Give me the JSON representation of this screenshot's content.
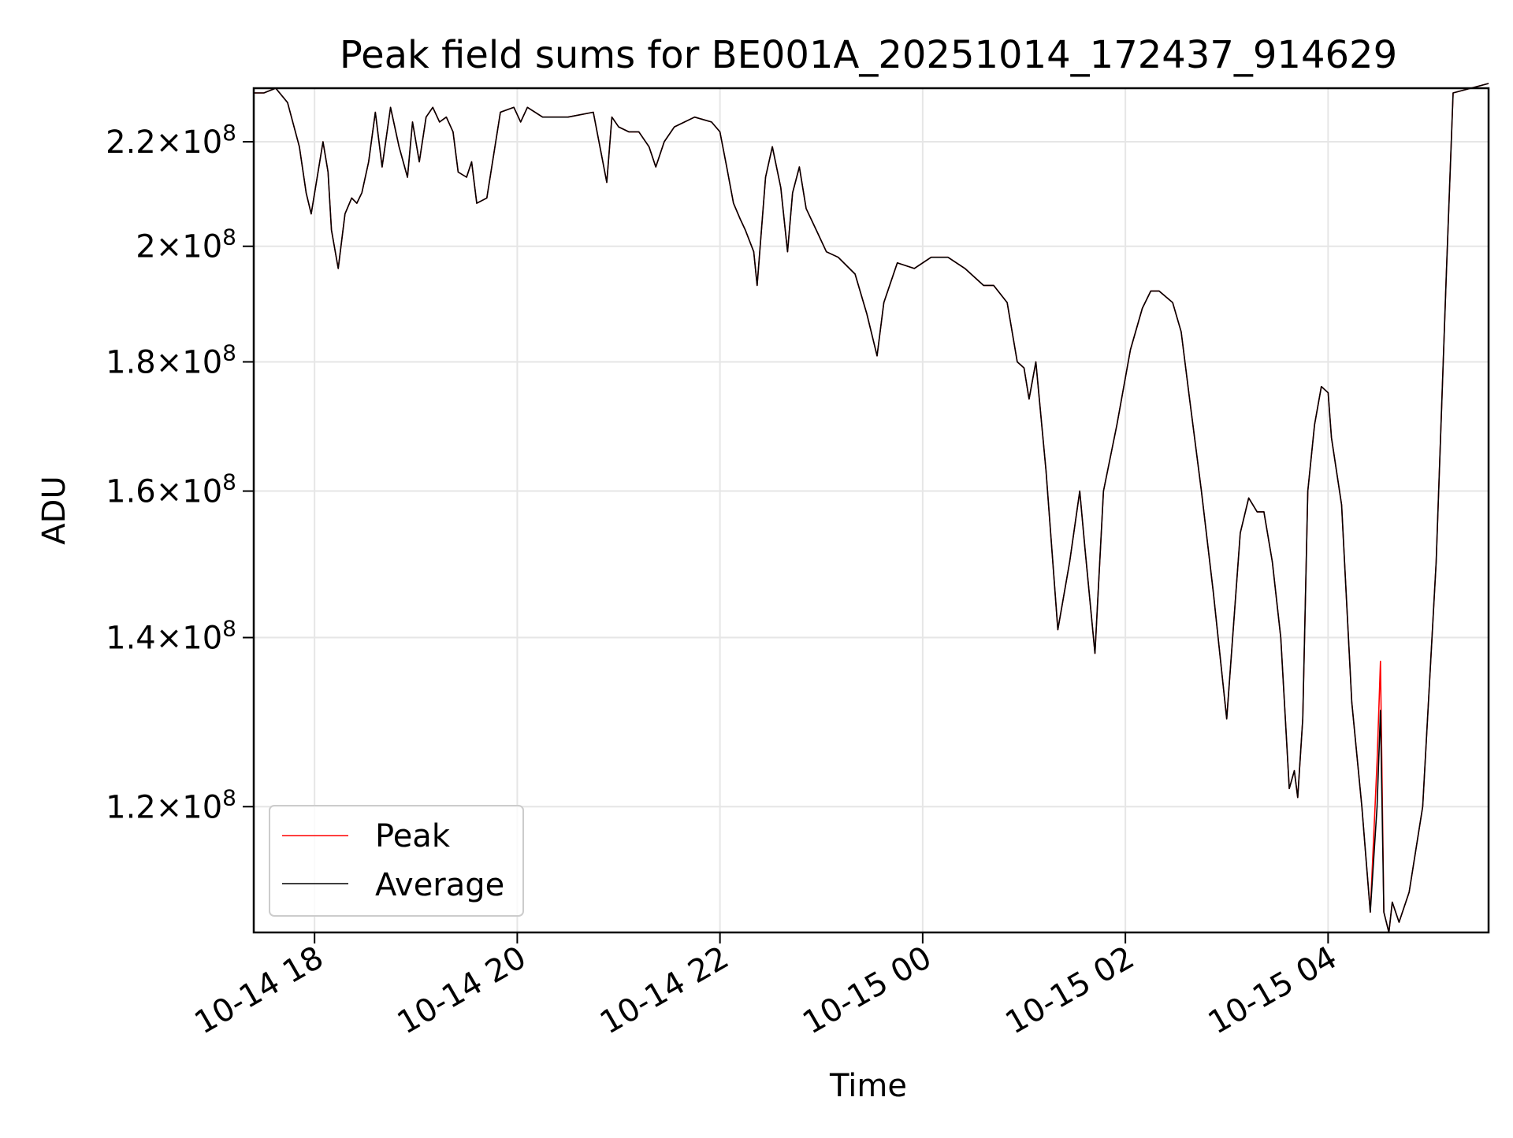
{
  "chart_data": {
    "type": "line",
    "title": "Peak field sums for BE001A_20251014_172437_914629",
    "xlabel": "Time",
    "ylabel": "ADU",
    "yscale": "log",
    "grid": true,
    "legend_position": "lower-left",
    "xlim": [
      "2025-10-14 17:24",
      "2025-10-15 05:35"
    ],
    "ylim": [
      107000000,
      231000000
    ],
    "x_ticks": [
      {
        "t": "2025-10-14 18:00",
        "label": "10-14 18"
      },
      {
        "t": "2025-10-14 20:00",
        "label": "10-14 20"
      },
      {
        "t": "2025-10-14 22:00",
        "label": "10-14 22"
      },
      {
        "t": "2025-10-15 00:00",
        "label": "10-15 00"
      },
      {
        "t": "2025-10-15 02:00",
        "label": "10-15 02"
      },
      {
        "t": "2025-10-15 04:00",
        "label": "10-15 04"
      }
    ],
    "y_ticks": [
      {
        "value": 120000000,
        "mantissa": "1.2",
        "base": "10",
        "exponent": "8"
      },
      {
        "value": 140000000,
        "mantissa": "1.4",
        "base": "10",
        "exponent": "8"
      },
      {
        "value": 160000000,
        "mantissa": "1.6",
        "base": "10",
        "exponent": "8"
      },
      {
        "value": 180000000,
        "mantissa": "1.8",
        "base": "10",
        "exponent": "8"
      },
      {
        "value": 200000000,
        "mantissa": "2",
        "base": "10",
        "exponent": "8"
      },
      {
        "value": 220000000,
        "mantissa": "2.2",
        "base": "10",
        "exponent": "8"
      }
    ],
    "series": [
      {
        "name": "Peak",
        "color": "#ff0000",
        "x": [
          "2025-10-14 17:24",
          "2025-10-14 17:30",
          "2025-10-14 17:37",
          "2025-10-14 17:44",
          "2025-10-14 17:51",
          "2025-10-14 17:55",
          "2025-10-14 17:58",
          "2025-10-14 18:05",
          "2025-10-14 18:08",
          "2025-10-14 18:10",
          "2025-10-14 18:14",
          "2025-10-14 18:18",
          "2025-10-14 18:22",
          "2025-10-14 18:25",
          "2025-10-14 18:28",
          "2025-10-14 18:32",
          "2025-10-14 18:36",
          "2025-10-14 18:40",
          "2025-10-14 18:45",
          "2025-10-14 18:50",
          "2025-10-14 18:55",
          "2025-10-14 18:58",
          "2025-10-14 19:02",
          "2025-10-14 19:06",
          "2025-10-14 19:10",
          "2025-10-14 19:14",
          "2025-10-14 19:18",
          "2025-10-14 19:22",
          "2025-10-14 19:25",
          "2025-10-14 19:30",
          "2025-10-14 19:33",
          "2025-10-14 19:36",
          "2025-10-14 19:42",
          "2025-10-14 19:50",
          "2025-10-14 19:58",
          "2025-10-14 20:02",
          "2025-10-14 20:06",
          "2025-10-14 20:15",
          "2025-10-14 20:30",
          "2025-10-14 20:45",
          "2025-10-14 20:53",
          "2025-10-14 20:56",
          "2025-10-14 21:00",
          "2025-10-14 21:06",
          "2025-10-14 21:12",
          "2025-10-14 21:18",
          "2025-10-14 21:22",
          "2025-10-14 21:27",
          "2025-10-14 21:33",
          "2025-10-14 21:45",
          "2025-10-14 21:55",
          "2025-10-14 22:00",
          "2025-10-14 22:04",
          "2025-10-14 22:08",
          "2025-10-14 22:12",
          "2025-10-14 22:15",
          "2025-10-14 22:20",
          "2025-10-14 22:22",
          "2025-10-14 22:27",
          "2025-10-14 22:31",
          "2025-10-14 22:36",
          "2025-10-14 22:40",
          "2025-10-14 22:43",
          "2025-10-14 22:47",
          "2025-10-14 22:51",
          "2025-10-14 22:57",
          "2025-10-14 23:03",
          "2025-10-14 23:10",
          "2025-10-14 23:20",
          "2025-10-14 23:27",
          "2025-10-14 23:33",
          "2025-10-14 23:37",
          "2025-10-14 23:45",
          "2025-10-14 23:55",
          "2025-10-15 00:05",
          "2025-10-15 00:15",
          "2025-10-15 00:25",
          "2025-10-15 00:36",
          "2025-10-15 00:42",
          "2025-10-15 00:50",
          "2025-10-15 00:56",
          "2025-10-15 01:00",
          "2025-10-15 01:03",
          "2025-10-15 01:07",
          "2025-10-15 01:13",
          "2025-10-15 01:20",
          "2025-10-15 01:27",
          "2025-10-15 01:33",
          "2025-10-15 01:36",
          "2025-10-15 01:42",
          "2025-10-15 01:47",
          "2025-10-15 01:55",
          "2025-10-15 02:03",
          "2025-10-15 02:10",
          "2025-10-15 02:15",
          "2025-10-15 02:20",
          "2025-10-15 02:28",
          "2025-10-15 02:33",
          "2025-10-15 02:38",
          "2025-10-15 02:45",
          "2025-10-15 02:52",
          "2025-10-15 03:00",
          "2025-10-15 03:08",
          "2025-10-15 03:13",
          "2025-10-15 03:18",
          "2025-10-15 03:22",
          "2025-10-15 03:27",
          "2025-10-15 03:32",
          "2025-10-15 03:37",
          "2025-10-15 03:40",
          "2025-10-15 03:42",
          "2025-10-15 03:45",
          "2025-10-15 03:48",
          "2025-10-15 03:52",
          "2025-10-15 03:56",
          "2025-10-15 04:00",
          "2025-10-15 04:02",
          "2025-10-15 04:08",
          "2025-10-15 04:14",
          "2025-10-15 04:20",
          "2025-10-15 04:25",
          "2025-10-15 04:29",
          "2025-10-15 04:31",
          "2025-10-15 04:33",
          "2025-10-15 04:36",
          "2025-10-15 04:38",
          "2025-10-15 04:42",
          "2025-10-15 04:48",
          "2025-10-15 04:56",
          "2025-10-15 05:04",
          "2025-10-15 05:10",
          "2025-10-15 05:14",
          "2025-10-15 05:35"
        ],
        "values": [
          230000000,
          230000000,
          231000000,
          228000000,
          219000000,
          210000000,
          206000000,
          220000000,
          214000000,
          203000000,
          196000000,
          206000000,
          209000000,
          208000000,
          210000000,
          216000000,
          226000000,
          215000000,
          227000000,
          219000000,
          213000000,
          224000000,
          216000000,
          225000000,
          227000000,
          224000000,
          225000000,
          222000000,
          214000000,
          213000000,
          216000000,
          208000000,
          209000000,
          226000000,
          227000000,
          224000000,
          227000000,
          225000000,
          225000000,
          226000000,
          212000000,
          225000000,
          223000000,
          222000000,
          222000000,
          219000000,
          215000000,
          220000000,
          223000000,
          225000000,
          224000000,
          222000000,
          215000000,
          208000000,
          205000000,
          203000000,
          199000000,
          193000000,
          213000000,
          219000000,
          211000000,
          199000000,
          210000000,
          215000000,
          207000000,
          203000000,
          199000000,
          198000000,
          195000000,
          188000000,
          181000000,
          190000000,
          197000000,
          196000000,
          198000000,
          198000000,
          196000000,
          193000000,
          193000000,
          190000000,
          180000000,
          179000000,
          174000000,
          180000000,
          163000000,
          141000000,
          150000000,
          160000000,
          152000000,
          138000000,
          160000000,
          170000000,
          182000000,
          189000000,
          192000000,
          192000000,
          190000000,
          185000000,
          174000000,
          160000000,
          146000000,
          130000000,
          154000000,
          159000000,
          157000000,
          157000000,
          150000000,
          140000000,
          122000000,
          124000000,
          121000000,
          130000000,
          160000000,
          170000000,
          176000000,
          175000000,
          168000000,
          158000000,
          132000000,
          120000000,
          109000000,
          125000000,
          137000000,
          109000000,
          107000000,
          110000000,
          108000000,
          111000000,
          120000000,
          150000000,
          195000000,
          230000000,
          232000000
        ]
      },
      {
        "name": "Average",
        "color": "#000000",
        "x": [
          "2025-10-14 17:24",
          "2025-10-14 17:30",
          "2025-10-14 17:37",
          "2025-10-14 17:44",
          "2025-10-14 17:51",
          "2025-10-14 17:55",
          "2025-10-14 17:58",
          "2025-10-14 18:05",
          "2025-10-14 18:08",
          "2025-10-14 18:10",
          "2025-10-14 18:14",
          "2025-10-14 18:18",
          "2025-10-14 18:22",
          "2025-10-14 18:25",
          "2025-10-14 18:28",
          "2025-10-14 18:32",
          "2025-10-14 18:36",
          "2025-10-14 18:40",
          "2025-10-14 18:45",
          "2025-10-14 18:50",
          "2025-10-14 18:55",
          "2025-10-14 18:58",
          "2025-10-14 19:02",
          "2025-10-14 19:06",
          "2025-10-14 19:10",
          "2025-10-14 19:14",
          "2025-10-14 19:18",
          "2025-10-14 19:22",
          "2025-10-14 19:25",
          "2025-10-14 19:30",
          "2025-10-14 19:33",
          "2025-10-14 19:36",
          "2025-10-14 19:42",
          "2025-10-14 19:50",
          "2025-10-14 19:58",
          "2025-10-14 20:02",
          "2025-10-14 20:06",
          "2025-10-14 20:15",
          "2025-10-14 20:30",
          "2025-10-14 20:45",
          "2025-10-14 20:53",
          "2025-10-14 20:56",
          "2025-10-14 21:00",
          "2025-10-14 21:06",
          "2025-10-14 21:12",
          "2025-10-14 21:18",
          "2025-10-14 21:22",
          "2025-10-14 21:27",
          "2025-10-14 21:33",
          "2025-10-14 21:45",
          "2025-10-14 21:55",
          "2025-10-14 22:00",
          "2025-10-14 22:04",
          "2025-10-14 22:08",
          "2025-10-14 22:12",
          "2025-10-14 22:15",
          "2025-10-14 22:20",
          "2025-10-14 22:22",
          "2025-10-14 22:27",
          "2025-10-14 22:31",
          "2025-10-14 22:36",
          "2025-10-14 22:40",
          "2025-10-14 22:43",
          "2025-10-14 22:47",
          "2025-10-14 22:51",
          "2025-10-14 22:57",
          "2025-10-14 23:03",
          "2025-10-14 23:10",
          "2025-10-14 23:20",
          "2025-10-14 23:27",
          "2025-10-14 23:33",
          "2025-10-14 23:37",
          "2025-10-14 23:45",
          "2025-10-14 23:55",
          "2025-10-15 00:05",
          "2025-10-15 00:15",
          "2025-10-15 00:25",
          "2025-10-15 00:36",
          "2025-10-15 00:42",
          "2025-10-15 00:50",
          "2025-10-15 00:56",
          "2025-10-15 01:00",
          "2025-10-15 01:03",
          "2025-10-15 01:07",
          "2025-10-15 01:13",
          "2025-10-15 01:20",
          "2025-10-15 01:27",
          "2025-10-15 01:33",
          "2025-10-15 01:36",
          "2025-10-15 01:42",
          "2025-10-15 01:47",
          "2025-10-15 01:55",
          "2025-10-15 02:03",
          "2025-10-15 02:10",
          "2025-10-15 02:15",
          "2025-10-15 02:20",
          "2025-10-15 02:28",
          "2025-10-15 02:33",
          "2025-10-15 02:38",
          "2025-10-15 02:45",
          "2025-10-15 02:52",
          "2025-10-15 03:00",
          "2025-10-15 03:08",
          "2025-10-15 03:13",
          "2025-10-15 03:18",
          "2025-10-15 03:22",
          "2025-10-15 03:27",
          "2025-10-15 03:32",
          "2025-10-15 03:37",
          "2025-10-15 03:40",
          "2025-10-15 03:42",
          "2025-10-15 03:45",
          "2025-10-15 03:48",
          "2025-10-15 03:52",
          "2025-10-15 03:56",
          "2025-10-15 04:00",
          "2025-10-15 04:02",
          "2025-10-15 04:08",
          "2025-10-15 04:14",
          "2025-10-15 04:20",
          "2025-10-15 04:25",
          "2025-10-15 04:29",
          "2025-10-15 04:31",
          "2025-10-15 04:33",
          "2025-10-15 04:36",
          "2025-10-15 04:38",
          "2025-10-15 04:42",
          "2025-10-15 04:48",
          "2025-10-15 04:56",
          "2025-10-15 05:04",
          "2025-10-15 05:10",
          "2025-10-15 05:14",
          "2025-10-15 05:35"
        ],
        "values": [
          230000000,
          230000000,
          231000000,
          228000000,
          219000000,
          210000000,
          206000000,
          220000000,
          214000000,
          203000000,
          196000000,
          206000000,
          209000000,
          208000000,
          210000000,
          216000000,
          226000000,
          215000000,
          227000000,
          219000000,
          213000000,
          224000000,
          216000000,
          225000000,
          227000000,
          224000000,
          225000000,
          222000000,
          214000000,
          213000000,
          216000000,
          208000000,
          209000000,
          226000000,
          227000000,
          224000000,
          227000000,
          225000000,
          225000000,
          226000000,
          212000000,
          225000000,
          223000000,
          222000000,
          222000000,
          219000000,
          215000000,
          220000000,
          223000000,
          225000000,
          224000000,
          222000000,
          215000000,
          208000000,
          205000000,
          203000000,
          199000000,
          193000000,
          213000000,
          219000000,
          211000000,
          199000000,
          210000000,
          215000000,
          207000000,
          203000000,
          199000000,
          198000000,
          195000000,
          188000000,
          181000000,
          190000000,
          197000000,
          196000000,
          198000000,
          198000000,
          196000000,
          193000000,
          193000000,
          190000000,
          180000000,
          179000000,
          174000000,
          180000000,
          163000000,
          141000000,
          150000000,
          160000000,
          152000000,
          138000000,
          160000000,
          170000000,
          182000000,
          189000000,
          192000000,
          192000000,
          190000000,
          185000000,
          174000000,
          160000000,
          146000000,
          130000000,
          154000000,
          159000000,
          157000000,
          157000000,
          150000000,
          140000000,
          122000000,
          124000000,
          121000000,
          130000000,
          160000000,
          170000000,
          176000000,
          175000000,
          168000000,
          158000000,
          132000000,
          120000000,
          109000000,
          120000000,
          131000000,
          109000000,
          107000000,
          110000000,
          108000000,
          111000000,
          120000000,
          150000000,
          195000000,
          230000000,
          232000000
        ]
      }
    ]
  }
}
